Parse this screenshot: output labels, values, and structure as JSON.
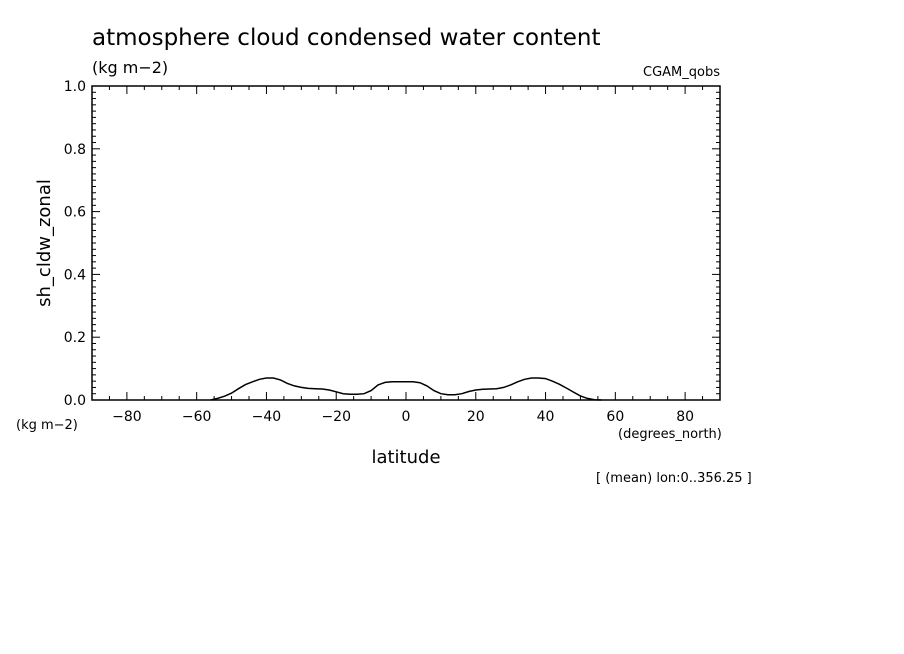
{
  "chart_data": {
    "type": "line",
    "title": "atmosphere cloud condensed water content",
    "title_units": "(kg m−2)",
    "dataset_label": "CGAM_qobs",
    "xlabel": "latitude",
    "ylabel": "sh_cldw_zonal",
    "y_units_label": "(kg m−2)",
    "x_units_label": "(degrees_north)",
    "footnote": "[ (mean) lon:0..356.25 ]",
    "xlim": [
      -90,
      90
    ],
    "ylim": [
      0,
      1
    ],
    "x_ticks": [
      -80,
      -60,
      -40,
      -20,
      0,
      20,
      40,
      60,
      80
    ],
    "x_tick_labels": [
      "−80",
      "−60",
      "−40",
      "−20",
      "0",
      "20",
      "40",
      "60",
      "80"
    ],
    "y_ticks": [
      0,
      0.2,
      0.4,
      0.6,
      0.8,
      1.0
    ],
    "y_tick_labels": [
      "0.0",
      "0.2",
      "0.4",
      "0.6",
      "0.8",
      "1.0"
    ],
    "grid": false,
    "series": [
      {
        "x": [
          -56,
          -54,
          -52,
          -50,
          -48,
          -46,
          -44,
          -42,
          -40,
          -38,
          -36,
          -34,
          -32,
          -30,
          -28,
          -26,
          -24,
          -22,
          -20,
          -18,
          -16,
          -14,
          -12,
          -10,
          -8,
          -6,
          -4,
          -2,
          0,
          2,
          4,
          6,
          8,
          10,
          12,
          14,
          16,
          18,
          20,
          22,
          24,
          26,
          28,
          30,
          32,
          34,
          36,
          38,
          40,
          42,
          44,
          46,
          48,
          50,
          52,
          54,
          56
        ],
        "y": [
          0.0,
          0.005,
          0.012,
          0.022,
          0.036,
          0.049,
          0.058,
          0.066,
          0.07,
          0.07,
          0.064,
          0.053,
          0.045,
          0.04,
          0.037,
          0.036,
          0.035,
          0.032,
          0.026,
          0.02,
          0.018,
          0.018,
          0.02,
          0.03,
          0.048,
          0.056,
          0.058,
          0.058,
          0.058,
          0.058,
          0.055,
          0.045,
          0.03,
          0.02,
          0.017,
          0.017,
          0.02,
          0.027,
          0.032,
          0.034,
          0.035,
          0.036,
          0.04,
          0.048,
          0.058,
          0.066,
          0.07,
          0.07,
          0.068,
          0.06,
          0.05,
          0.038,
          0.025,
          0.013,
          0.005,
          0.001,
          0.0
        ]
      }
    ]
  }
}
